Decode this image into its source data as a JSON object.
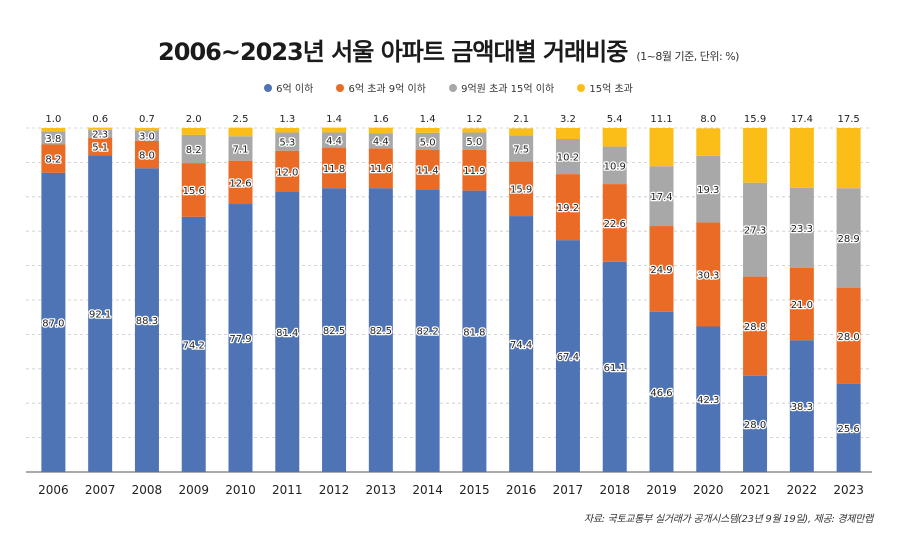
{
  "chart_data": {
    "type": "bar",
    "stacked": true,
    "title": "2006~2023년 서울 아파트 금액대별 거래비중",
    "subtitle": "(1~8월 기준, 단위: %)",
    "source": "자료: 국토교통부 실거래가 공개시스템(23년 9월 19일), 제공: 경제만랩",
    "categories": [
      "2006",
      "2007",
      "2008",
      "2009",
      "2010",
      "2011",
      "2012",
      "2013",
      "2014",
      "2015",
      "2016",
      "2017",
      "2018",
      "2019",
      "2020",
      "2021",
      "2022",
      "2023"
    ],
    "ylim": [
      0,
      100
    ],
    "grid": true,
    "series": [
      {
        "name": "6억 이하",
        "color": "#4e74b5",
        "values": [
          87.0,
          92.1,
          88.3,
          74.2,
          77.9,
          81.4,
          82.5,
          82.5,
          82.2,
          81.8,
          74.4,
          67.4,
          61.1,
          46.6,
          42.3,
          28.0,
          38.3,
          25.6
        ],
        "labels": [
          "87.0",
          "92.1",
          "88.3",
          "74.2",
          "77.9",
          "81.4",
          "82.5",
          "82.5",
          "82.2",
          "81.8",
          "74.4",
          "67.4",
          "61.1",
          "46.6",
          "42.3",
          "28.0",
          "38.3",
          "25.6"
        ]
      },
      {
        "name": "6억 초과 9억 이하",
        "color": "#ea6b25",
        "values": [
          8.2,
          5.1,
          8.0,
          15.6,
          12.6,
          12.0,
          11.8,
          11.6,
          11.4,
          11.9,
          15.9,
          19.2,
          22.6,
          24.9,
          30.3,
          28.8,
          21.0,
          28.0
        ],
        "labels": [
          "8.2",
          "5.1",
          "8.0",
          "15.6",
          "12.6",
          "12.0",
          "11.8",
          "11.6",
          "11.4",
          "11.9",
          "15.9",
          "19.2",
          "22.6",
          "24.9",
          "30.3",
          "28.8",
          "21.0",
          "28.0"
        ]
      },
      {
        "name": "9억원 초과 15억 이하",
        "color": "#a8a8a8",
        "values": [
          3.8,
          2.3,
          3.0,
          8.2,
          7.1,
          5.3,
          4.4,
          4.4,
          5.0,
          5.0,
          7.5,
          10.2,
          10.9,
          17.4,
          19.3,
          27.3,
          23.3,
          28.9
        ],
        "labels": [
          "3.8",
          "2.3",
          "3.0",
          "8.2",
          "7.1",
          "5.3",
          "4.4",
          "4.4",
          "5.0",
          "5.0",
          "7.5",
          "10.2",
          "10.9",
          "17.4",
          "19.3",
          "27.3",
          "23.3",
          "28.9"
        ]
      },
      {
        "name": "15억 초과",
        "color": "#fbbd17",
        "values": [
          1.0,
          0.6,
          0.7,
          2.0,
          2.5,
          1.3,
          1.4,
          1.6,
          1.4,
          1.2,
          2.1,
          3.2,
          5.4,
          11.1,
          8.0,
          15.9,
          17.4,
          17.5
        ],
        "labels": [
          "1.0",
          "0.6",
          "0.7",
          "2.0",
          "2.5",
          "1.3",
          "1.4",
          "1.6",
          "1.4",
          "1.2",
          "2.1",
          "3.2",
          "5.4",
          "11.1",
          "8.0",
          "15.9",
          "17.4",
          "17.5"
        ]
      }
    ]
  }
}
